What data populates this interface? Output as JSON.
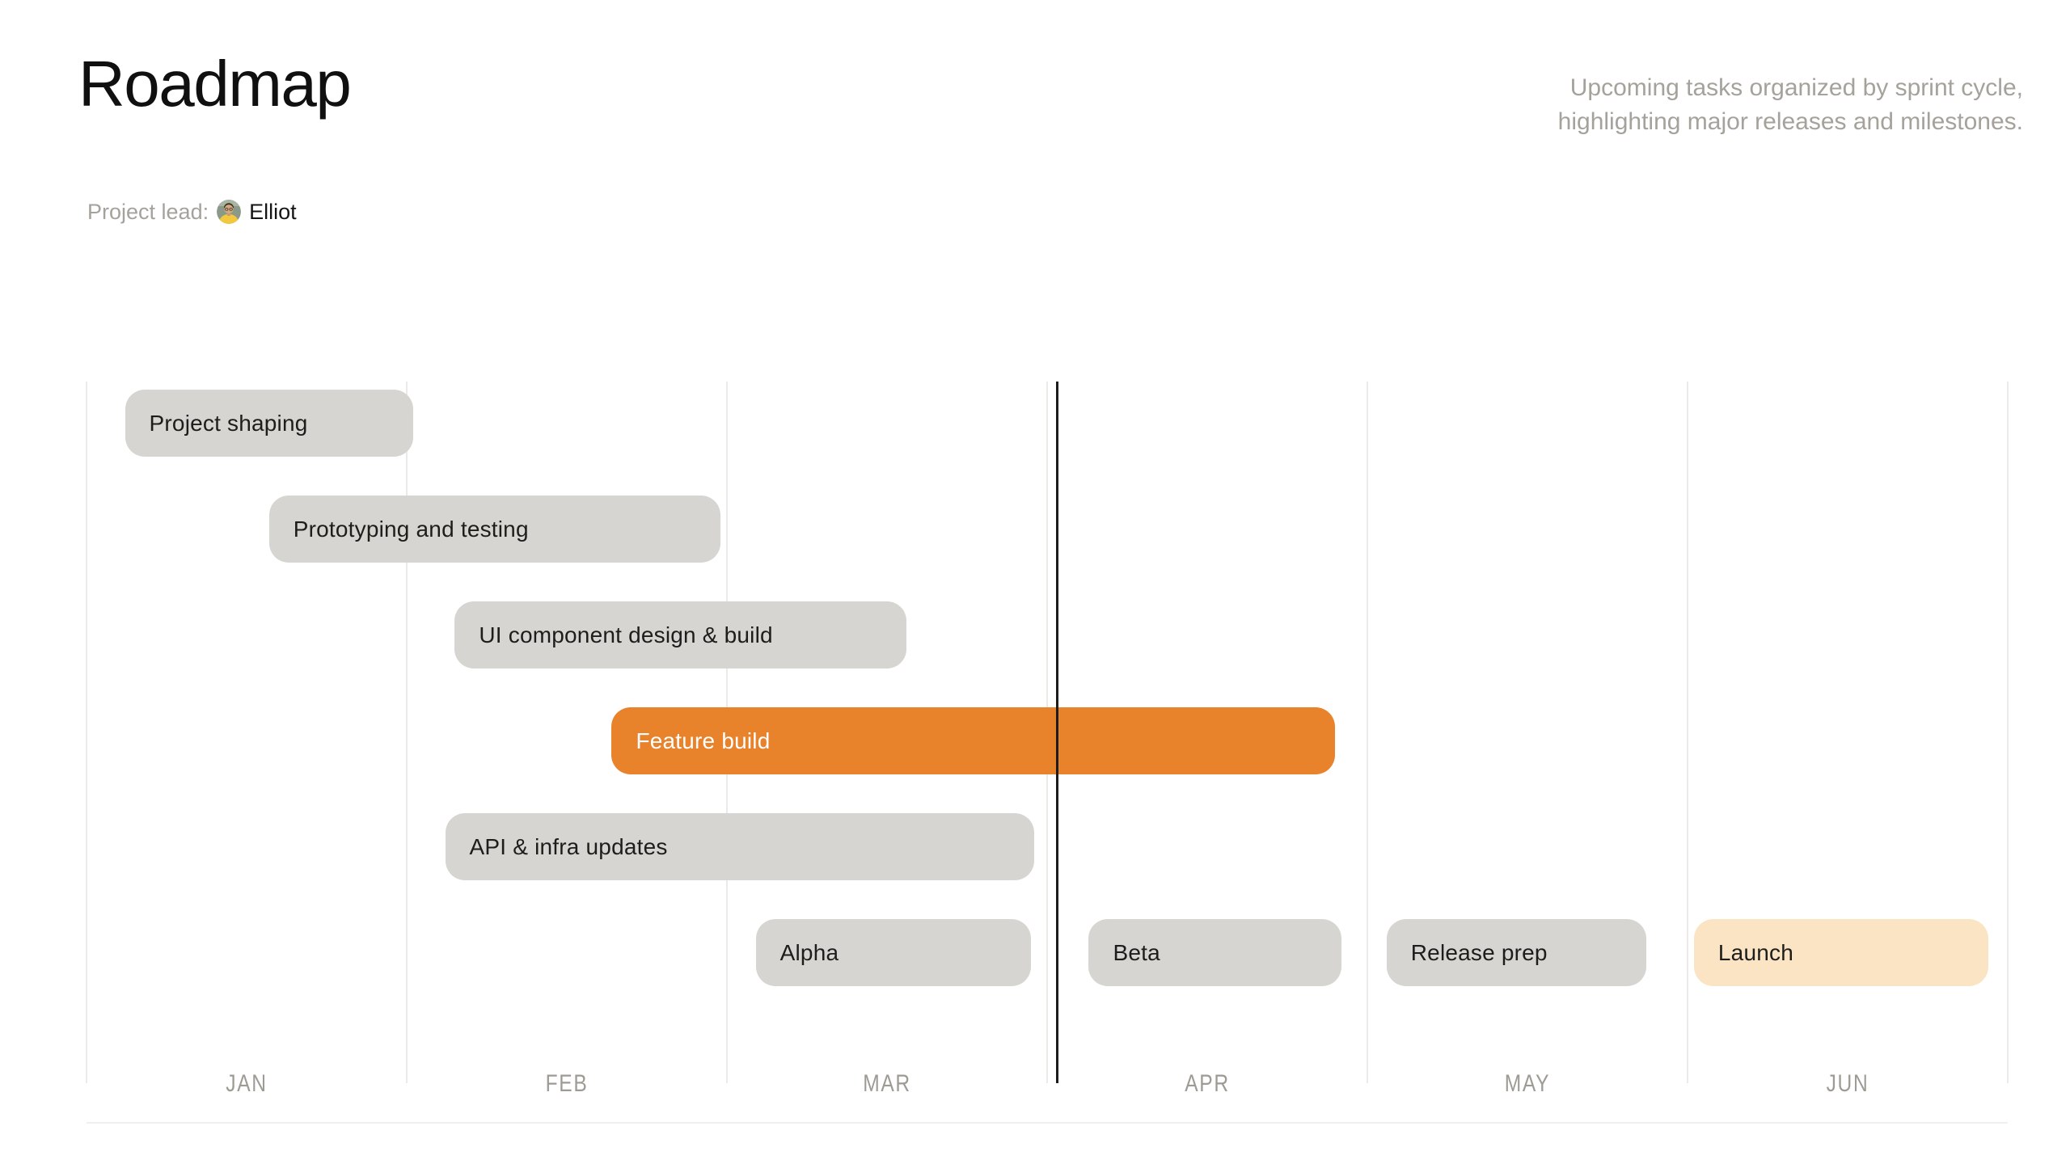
{
  "header": {
    "title": "Roadmap",
    "subtitle": {
      "line1": "Upcoming tasks organized by sprint cycle,",
      "line2": "highlighting major releases and milestones."
    }
  },
  "project_lead": {
    "label": "Project lead:",
    "name": "Elliot",
    "avatar_icon": "person-avatar"
  },
  "colors": {
    "task_default_bg": "#d7d5d2",
    "task_highlight_bg": "#e8832c",
    "task_milestone_bg": "#fbe4c3",
    "task_text_dark": "#1d1d1b",
    "task_text_light": "#ffffff",
    "gridline": "#eceae7",
    "today_line": "#1c1c1c",
    "month_label_text": "#9e9a94",
    "muted_text": "#a5a29c"
  },
  "chart_data": {
    "type": "bar",
    "variant": "gantt-roadmap",
    "title": "Roadmap",
    "xlabel": "",
    "ylabel": "",
    "months": [
      "JAN",
      "FEB",
      "MAR",
      "APR",
      "MAY",
      "JUN"
    ],
    "month_axis_range": [
      0,
      6
    ],
    "grid": true,
    "today_month": 3.03,
    "row_count": 6,
    "tasks": [
      {
        "label": "Project shaping",
        "row": 0,
        "start_month": 0.12,
        "end_month": 1.02,
        "color_key": "default"
      },
      {
        "label": "Prototyping and testing",
        "row": 1,
        "start_month": 0.57,
        "end_month": 1.98,
        "color_key": "default"
      },
      {
        "label": "UI component design & build",
        "row": 2,
        "start_month": 1.15,
        "end_month": 2.56,
        "color_key": "default"
      },
      {
        "label": "Feature build",
        "row": 3,
        "start_month": 1.64,
        "end_month": 3.9,
        "color_key": "highlight"
      },
      {
        "label": "API & infra updates",
        "row": 4,
        "start_month": 1.12,
        "end_month": 2.96,
        "color_key": "default"
      },
      {
        "label": "Alpha",
        "row": 5,
        "start_month": 2.09,
        "end_month": 2.95,
        "color_key": "default"
      },
      {
        "label": "Beta",
        "row": 5,
        "start_month": 3.13,
        "end_month": 3.92,
        "color_key": "default"
      },
      {
        "label": "Release prep",
        "row": 5,
        "start_month": 4.06,
        "end_month": 4.87,
        "color_key": "default"
      },
      {
        "label": "Launch",
        "row": 5,
        "start_month": 5.02,
        "end_month": 5.94,
        "color_key": "milestone"
      }
    ]
  }
}
